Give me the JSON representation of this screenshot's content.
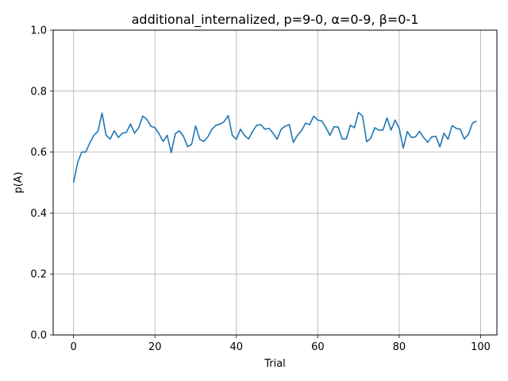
{
  "chart_data": {
    "type": "line",
    "title": "additional_internalized, p=9-0, α=0-9, β=0-1",
    "xlabel": "Trial",
    "ylabel": "p(A)",
    "xlim": [
      -5,
      104
    ],
    "ylim": [
      0.0,
      1.0
    ],
    "xticks": [
      0,
      20,
      40,
      60,
      80,
      100
    ],
    "yticks": [
      0.0,
      0.2,
      0.4,
      0.6,
      0.8,
      1.0
    ],
    "xtick_labels": [
      "0",
      "20",
      "40",
      "60",
      "80",
      "100"
    ],
    "ytick_labels": [
      "0.0",
      "0.2",
      "0.4",
      "0.6",
      "0.8",
      "1.0"
    ],
    "grid": true,
    "line_color": "#1f77b4",
    "series": [
      {
        "x": [
          0,
          1,
          2,
          3,
          4,
          5,
          6,
          7,
          8,
          9,
          10,
          11,
          12,
          13,
          14,
          15,
          16,
          17,
          18,
          19,
          20,
          21,
          22,
          23,
          24,
          25,
          26,
          27,
          28,
          29,
          30,
          31,
          32,
          33,
          34,
          35,
          36,
          37,
          38,
          39,
          40,
          41,
          42,
          43,
          44,
          45,
          46,
          47,
          48,
          49,
          50,
          51,
          52,
          53,
          54,
          55,
          56,
          57,
          58,
          59,
          60,
          61,
          62,
          63,
          64,
          65,
          66,
          67,
          68,
          69,
          70,
          71,
          72,
          73,
          74,
          75,
          76,
          77,
          78,
          79,
          80,
          81,
          82,
          83,
          84,
          85,
          86,
          87,
          88,
          89,
          90,
          91,
          92,
          93,
          94,
          95,
          96,
          97,
          98,
          99
        ],
        "values": [
          0.5,
          0.565,
          0.6,
          0.6,
          0.63,
          0.655,
          0.668,
          0.728,
          0.655,
          0.643,
          0.67,
          0.648,
          0.662,
          0.665,
          0.692,
          0.662,
          0.68,
          0.718,
          0.708,
          0.685,
          0.68,
          0.66,
          0.635,
          0.655,
          0.598,
          0.66,
          0.67,
          0.652,
          0.618,
          0.625,
          0.686,
          0.642,
          0.635,
          0.65,
          0.675,
          0.688,
          0.692,
          0.7,
          0.72,
          0.655,
          0.642,
          0.675,
          0.655,
          0.643,
          0.668,
          0.688,
          0.69,
          0.675,
          0.678,
          0.662,
          0.642,
          0.675,
          0.685,
          0.69,
          0.632,
          0.655,
          0.67,
          0.695,
          0.69,
          0.718,
          0.705,
          0.702,
          0.68,
          0.655,
          0.683,
          0.682,
          0.643,
          0.643,
          0.688,
          0.68,
          0.73,
          0.718,
          0.634,
          0.645,
          0.68,
          0.672,
          0.672,
          0.712,
          0.672,
          0.705,
          0.678,
          0.613,
          0.667,
          0.648,
          0.65,
          0.668,
          0.648,
          0.632,
          0.65,
          0.652,
          0.617,
          0.662,
          0.642,
          0.687,
          0.678,
          0.675,
          0.643,
          0.658,
          0.695,
          0.702
        ]
      }
    ]
  }
}
